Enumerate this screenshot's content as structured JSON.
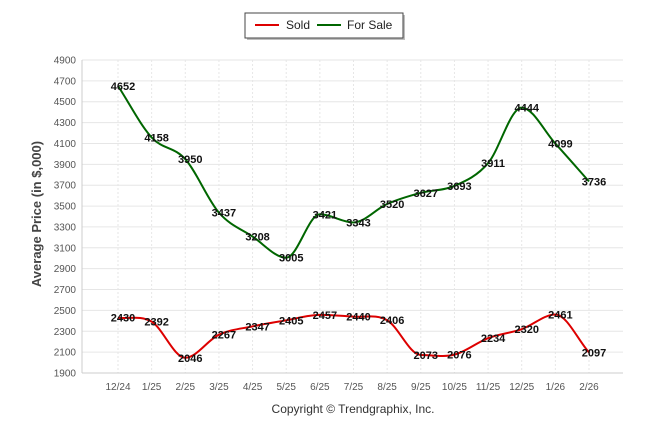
{
  "chart_data": {
    "type": "line",
    "title": "",
    "xlabel": "",
    "ylabel": "Average Price (in $,000)",
    "categories": [
      "12/24",
      "1/25",
      "2/25",
      "3/25",
      "4/25",
      "5/25",
      "6/25",
      "7/25",
      "8/25",
      "9/25",
      "10/25",
      "11/25",
      "12/25",
      "1/26",
      "2/26"
    ],
    "yticks": [
      1900,
      2100,
      2300,
      2500,
      2700,
      2900,
      3100,
      3300,
      3500,
      3700,
      3900,
      4100,
      4300,
      4500,
      4700,
      4900
    ],
    "ylim": [
      1900,
      4900
    ],
    "grid": true,
    "legend_position": "top-center",
    "series": [
      {
        "name": "Sold",
        "color": "#dd0000",
        "values": [
          2430,
          2392,
          2046,
          2267,
          2347,
          2405,
          2457,
          2440,
          2406,
          2073,
          2076,
          2234,
          2320,
          2461,
          2097
        ]
      },
      {
        "name": "For Sale",
        "color": "#006600",
        "values": [
          4652,
          4158,
          3950,
          3437,
          3208,
          3005,
          3421,
          3343,
          3520,
          3627,
          3693,
          3911,
          4444,
          4099,
          3736
        ]
      }
    ],
    "credit": "Copyright © Trendgraphix, Inc."
  }
}
